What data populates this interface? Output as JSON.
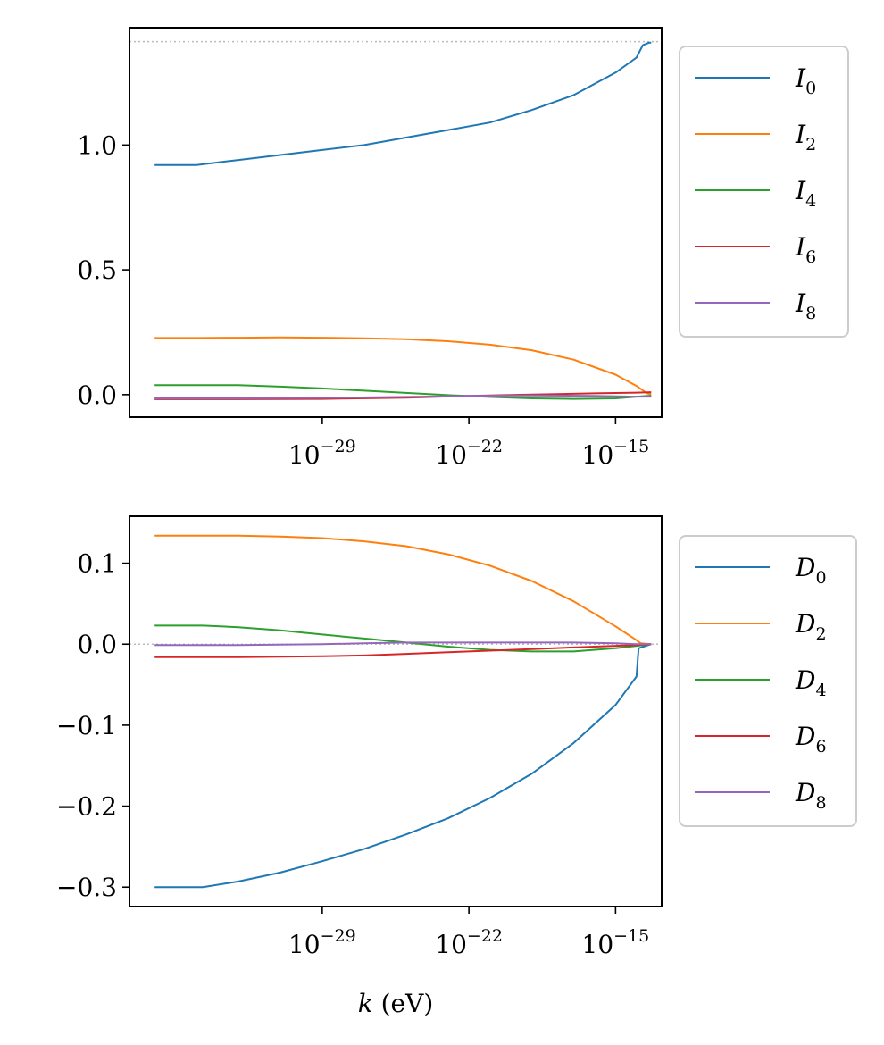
{
  "chart_data": [
    {
      "type": "line",
      "x_scale": "log",
      "xlim_log10": [
        -38.2,
        -12.8
      ],
      "ylim": [
        -0.09,
        1.47
      ],
      "xticks": [
        {
          "exp": -29,
          "base": "10",
          "sup": "−29"
        },
        {
          "exp": -22,
          "base": "10",
          "sup": "−22"
        },
        {
          "exp": -15,
          "base": "10",
          "sup": "−15"
        }
      ],
      "yticks": [
        {
          "value": 0.0,
          "label": "0.0"
        },
        {
          "value": 0.5,
          "label": "0.5"
        },
        {
          "value": 1.0,
          "label": "1.0"
        }
      ],
      "xlabel": "",
      "reference_line": {
        "y": 1.414,
        "color": "#bbbbbb"
      },
      "legend_position": "outside-right-top",
      "series": [
        {
          "name": "I",
          "sub": "0",
          "color": "#1f77b4",
          "x": [
            -37,
            -35,
            -33,
            -31,
            -29,
            -27,
            -25,
            -23,
            -21,
            -19,
            -17,
            -15,
            -14,
            -13.7,
            -13.4,
            -13.3
          ],
          "y": [
            0.92,
            0.92,
            0.94,
            0.96,
            0.98,
            1.0,
            1.03,
            1.06,
            1.09,
            1.14,
            1.2,
            1.29,
            1.35,
            1.4,
            1.41,
            1.41
          ]
        },
        {
          "name": "I",
          "sub": "2",
          "color": "#ff7f0e",
          "x": [
            -37,
            -35,
            -33,
            -31,
            -29,
            -27,
            -25,
            -23,
            -21,
            -19,
            -17,
            -15,
            -14,
            -13.5,
            -13.3
          ],
          "y": [
            0.227,
            0.227,
            0.228,
            0.229,
            0.228,
            0.226,
            0.222,
            0.214,
            0.2,
            0.178,
            0.14,
            0.08,
            0.035,
            0.005,
            0.002
          ]
        },
        {
          "name": "I",
          "sub": "4",
          "color": "#2ca02c",
          "x": [
            -37,
            -35,
            -33,
            -31,
            -29,
            -27,
            -25,
            -23,
            -21,
            -19,
            -17,
            -15,
            -14,
            -13.3
          ],
          "y": [
            0.038,
            0.038,
            0.038,
            0.032,
            0.025,
            0.016,
            0.007,
            -0.002,
            -0.009,
            -0.015,
            -0.017,
            -0.015,
            -0.008,
            -0.004
          ]
        },
        {
          "name": "I",
          "sub": "6",
          "color": "#d62728",
          "x": [
            -37,
            -33,
            -29,
            -25,
            -22,
            -19,
            -16,
            -14,
            -13.3
          ],
          "y": [
            -0.018,
            -0.018,
            -0.017,
            -0.012,
            -0.005,
            0.0,
            0.005,
            0.008,
            0.01
          ]
        },
        {
          "name": "I",
          "sub": "8",
          "color": "#9467bd",
          "x": [
            -37,
            -33,
            -29,
            -25,
            -22,
            -19,
            -16,
            -14,
            -13.3
          ],
          "y": [
            -0.015,
            -0.015,
            -0.013,
            -0.009,
            -0.005,
            -0.003,
            -0.005,
            -0.008,
            -0.008
          ]
        }
      ]
    },
    {
      "type": "line",
      "x_scale": "log",
      "xlim_log10": [
        -38.2,
        -12.8
      ],
      "ylim": [
        -0.324,
        0.158
      ],
      "xticks": [
        {
          "exp": -29,
          "base": "10",
          "sup": "−29"
        },
        {
          "exp": -22,
          "base": "10",
          "sup": "−22"
        },
        {
          "exp": -15,
          "base": "10",
          "sup": "−15"
        }
      ],
      "yticks": [
        {
          "value": -0.3,
          "label": "−0.3"
        },
        {
          "value": -0.2,
          "label": "−0.2"
        },
        {
          "value": -0.1,
          "label": "−0.1"
        },
        {
          "value": 0.0,
          "label": "0.0"
        },
        {
          "value": 0.1,
          "label": "0.1"
        }
      ],
      "xlabel": {
        "var": "k",
        "unit": " (eV)"
      },
      "reference_line": {
        "y": 0.0,
        "color": "#bbbbbb"
      },
      "legend_position": "outside-right-top",
      "series": [
        {
          "name": "D",
          "sub": "0",
          "color": "#1f77b4",
          "x": [
            -37,
            -35,
            -34.7,
            -33,
            -31,
            -29,
            -27,
            -25,
            -23,
            -21,
            -19,
            -17,
            -15,
            -14,
            -13.9,
            -13.3
          ],
          "y": [
            -0.3,
            -0.3,
            -0.3,
            -0.293,
            -0.282,
            -0.268,
            -0.253,
            -0.235,
            -0.215,
            -0.19,
            -0.16,
            -0.122,
            -0.075,
            -0.04,
            -0.005,
            0.0
          ]
        },
        {
          "name": "D",
          "sub": "2",
          "color": "#ff7f0e",
          "x": [
            -37,
            -35,
            -33,
            -31,
            -29,
            -27,
            -25,
            -23,
            -21,
            -19,
            -17,
            -15,
            -14,
            -13.8,
            -13.3
          ],
          "y": [
            0.134,
            0.134,
            0.134,
            0.133,
            0.131,
            0.127,
            0.121,
            0.111,
            0.097,
            0.078,
            0.053,
            0.022,
            0.005,
            0.001,
            0.0
          ]
        },
        {
          "name": "D",
          "sub": "4",
          "color": "#2ca02c",
          "x": [
            -37,
            -35,
            -34.7,
            -33,
            -31,
            -29,
            -27,
            -25,
            -23,
            -21,
            -19,
            -17,
            -15,
            -14,
            -13.3
          ],
          "y": [
            0.023,
            0.023,
            0.023,
            0.021,
            0.017,
            0.012,
            0.007,
            0.002,
            -0.003,
            -0.007,
            -0.009,
            -0.009,
            -0.005,
            -0.002,
            0.0
          ]
        },
        {
          "name": "D",
          "sub": "6",
          "color": "#d62728",
          "x": [
            -37,
            -33,
            -29,
            -27,
            -25,
            -23,
            -21,
            -19,
            -17,
            -15,
            -14,
            -13.3
          ],
          "y": [
            -0.016,
            -0.016,
            -0.015,
            -0.014,
            -0.012,
            -0.01,
            -0.008,
            -0.006,
            -0.004,
            -0.002,
            -0.001,
            0.0
          ]
        },
        {
          "name": "D",
          "sub": "8",
          "color": "#9467bd",
          "x": [
            -37,
            -33,
            -29,
            -27,
            -25,
            -23,
            -21,
            -19,
            -17,
            -15,
            -14,
            -13.3
          ],
          "y": [
            -0.001,
            -0.001,
            0.0,
            0.001,
            0.002,
            0.002,
            0.002,
            0.002,
            0.002,
            0.001,
            0.0,
            0.0
          ]
        }
      ]
    }
  ]
}
